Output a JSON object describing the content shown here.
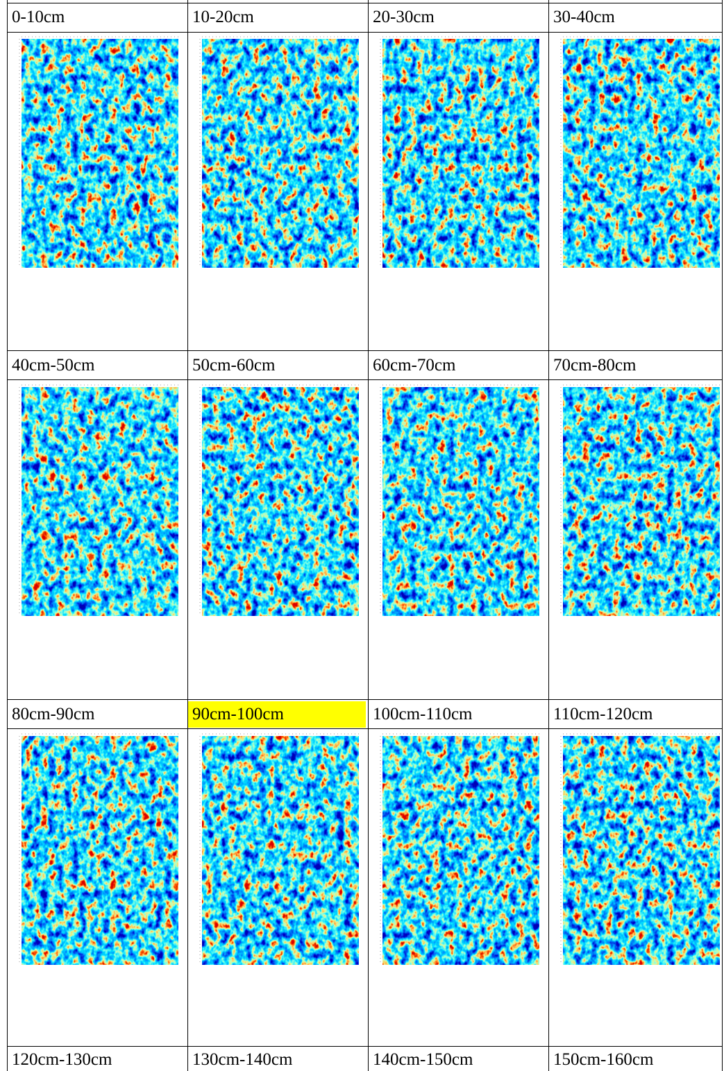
{
  "table": {
    "rows": [
      [
        "0-10cm",
        "10-20cm",
        "20-30cm",
        "30-40cm"
      ],
      [
        "40cm-50cm",
        "50cm-60cm",
        "60cm-70cm",
        "70cm-80cm"
      ],
      [
        "80cm-90cm",
        "90cm-100cm",
        "100cm-110cm",
        "110cm-120cm"
      ],
      [
        "120cm-130cm",
        "130cm-140cm",
        "140cm-150cm",
        "150cm-160cm"
      ]
    ]
  }
}
